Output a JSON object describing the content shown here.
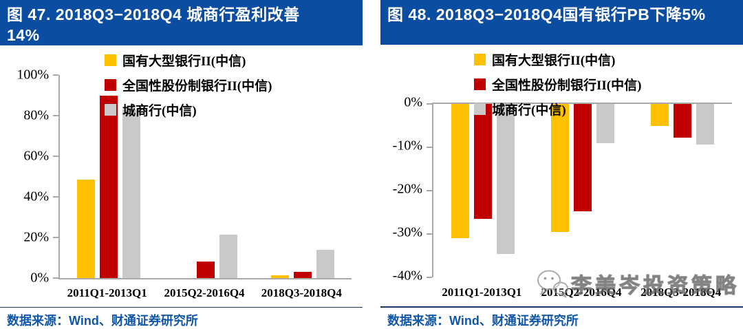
{
  "panels": {
    "left": {
      "title": "图 47. 2018Q3−2018Q4 城商行盈利改善\n14%",
      "source": "数据来源：Wind、财通证券研究所"
    },
    "right": {
      "title": "图 48. 2018Q3−2018Q4国有银行PB下降5%",
      "source": "数据来源：Wind、财通证券研究所"
    }
  },
  "watermark": {
    "text": "李美岑投资策略",
    "icon": "wechat-icon"
  },
  "colors": {
    "title-bg": "#0B4DA1",
    "axis": "#A9A9A9",
    "rule": "#1A3A66",
    "source": "#1157A7"
  },
  "chart_data": [
    {
      "type": "bar",
      "title": "图 47. 2018Q3−2018Q4 城商行盈利改善14%",
      "categories": [
        "2011Q1-2013Q1",
        "2015Q2-2016Q4",
        "2018Q3-2018Q4"
      ],
      "series": [
        {
          "name": "国有大型银行II(中信)",
          "color": "#FFC000",
          "values": [
            48.5,
            0,
            1.5
          ]
        },
        {
          "name": "全国性股份制银行II(中信)",
          "color": "#C00000",
          "values": [
            90,
            8,
            3
          ]
        },
        {
          "name": "城商行(中信)",
          "color": "#C9C9C9",
          "values": [
            83,
            21.5,
            14
          ]
        }
      ],
      "ylim": [
        0,
        100
      ],
      "yticks": [
        "100%",
        "80%",
        "60%",
        "40%",
        "20%",
        "0%"
      ],
      "ylabel": "",
      "xlabel": "",
      "grid": false,
      "legend_position": "top"
    },
    {
      "type": "bar",
      "title": "图 48. 2018Q3−2018Q4国有银行PB下降5%",
      "categories": [
        "2011Q1-2013Q1",
        "2015Q2-2016Q4",
        "2018Q3-2018Q4"
      ],
      "series": [
        {
          "name": "国有大型银行II(中信)",
          "color": "#FFC000",
          "values": [
            -31,
            -29.5,
            -5
          ]
        },
        {
          "name": "全国性股份制银行II(中信)",
          "color": "#C00000",
          "values": [
            -26.5,
            -24.8,
            -7.8
          ]
        },
        {
          "name": "城商行(中信)",
          "color": "#C9C9C9",
          "values": [
            -34.5,
            -9,
            -9.3
          ]
        }
      ],
      "ylim": [
        0,
        -40
      ],
      "yticks": [
        "0%",
        "-10%",
        "-20%",
        "-30%",
        "-40%"
      ],
      "ylabel": "",
      "xlabel": "",
      "grid": false,
      "legend_position": "top"
    }
  ]
}
